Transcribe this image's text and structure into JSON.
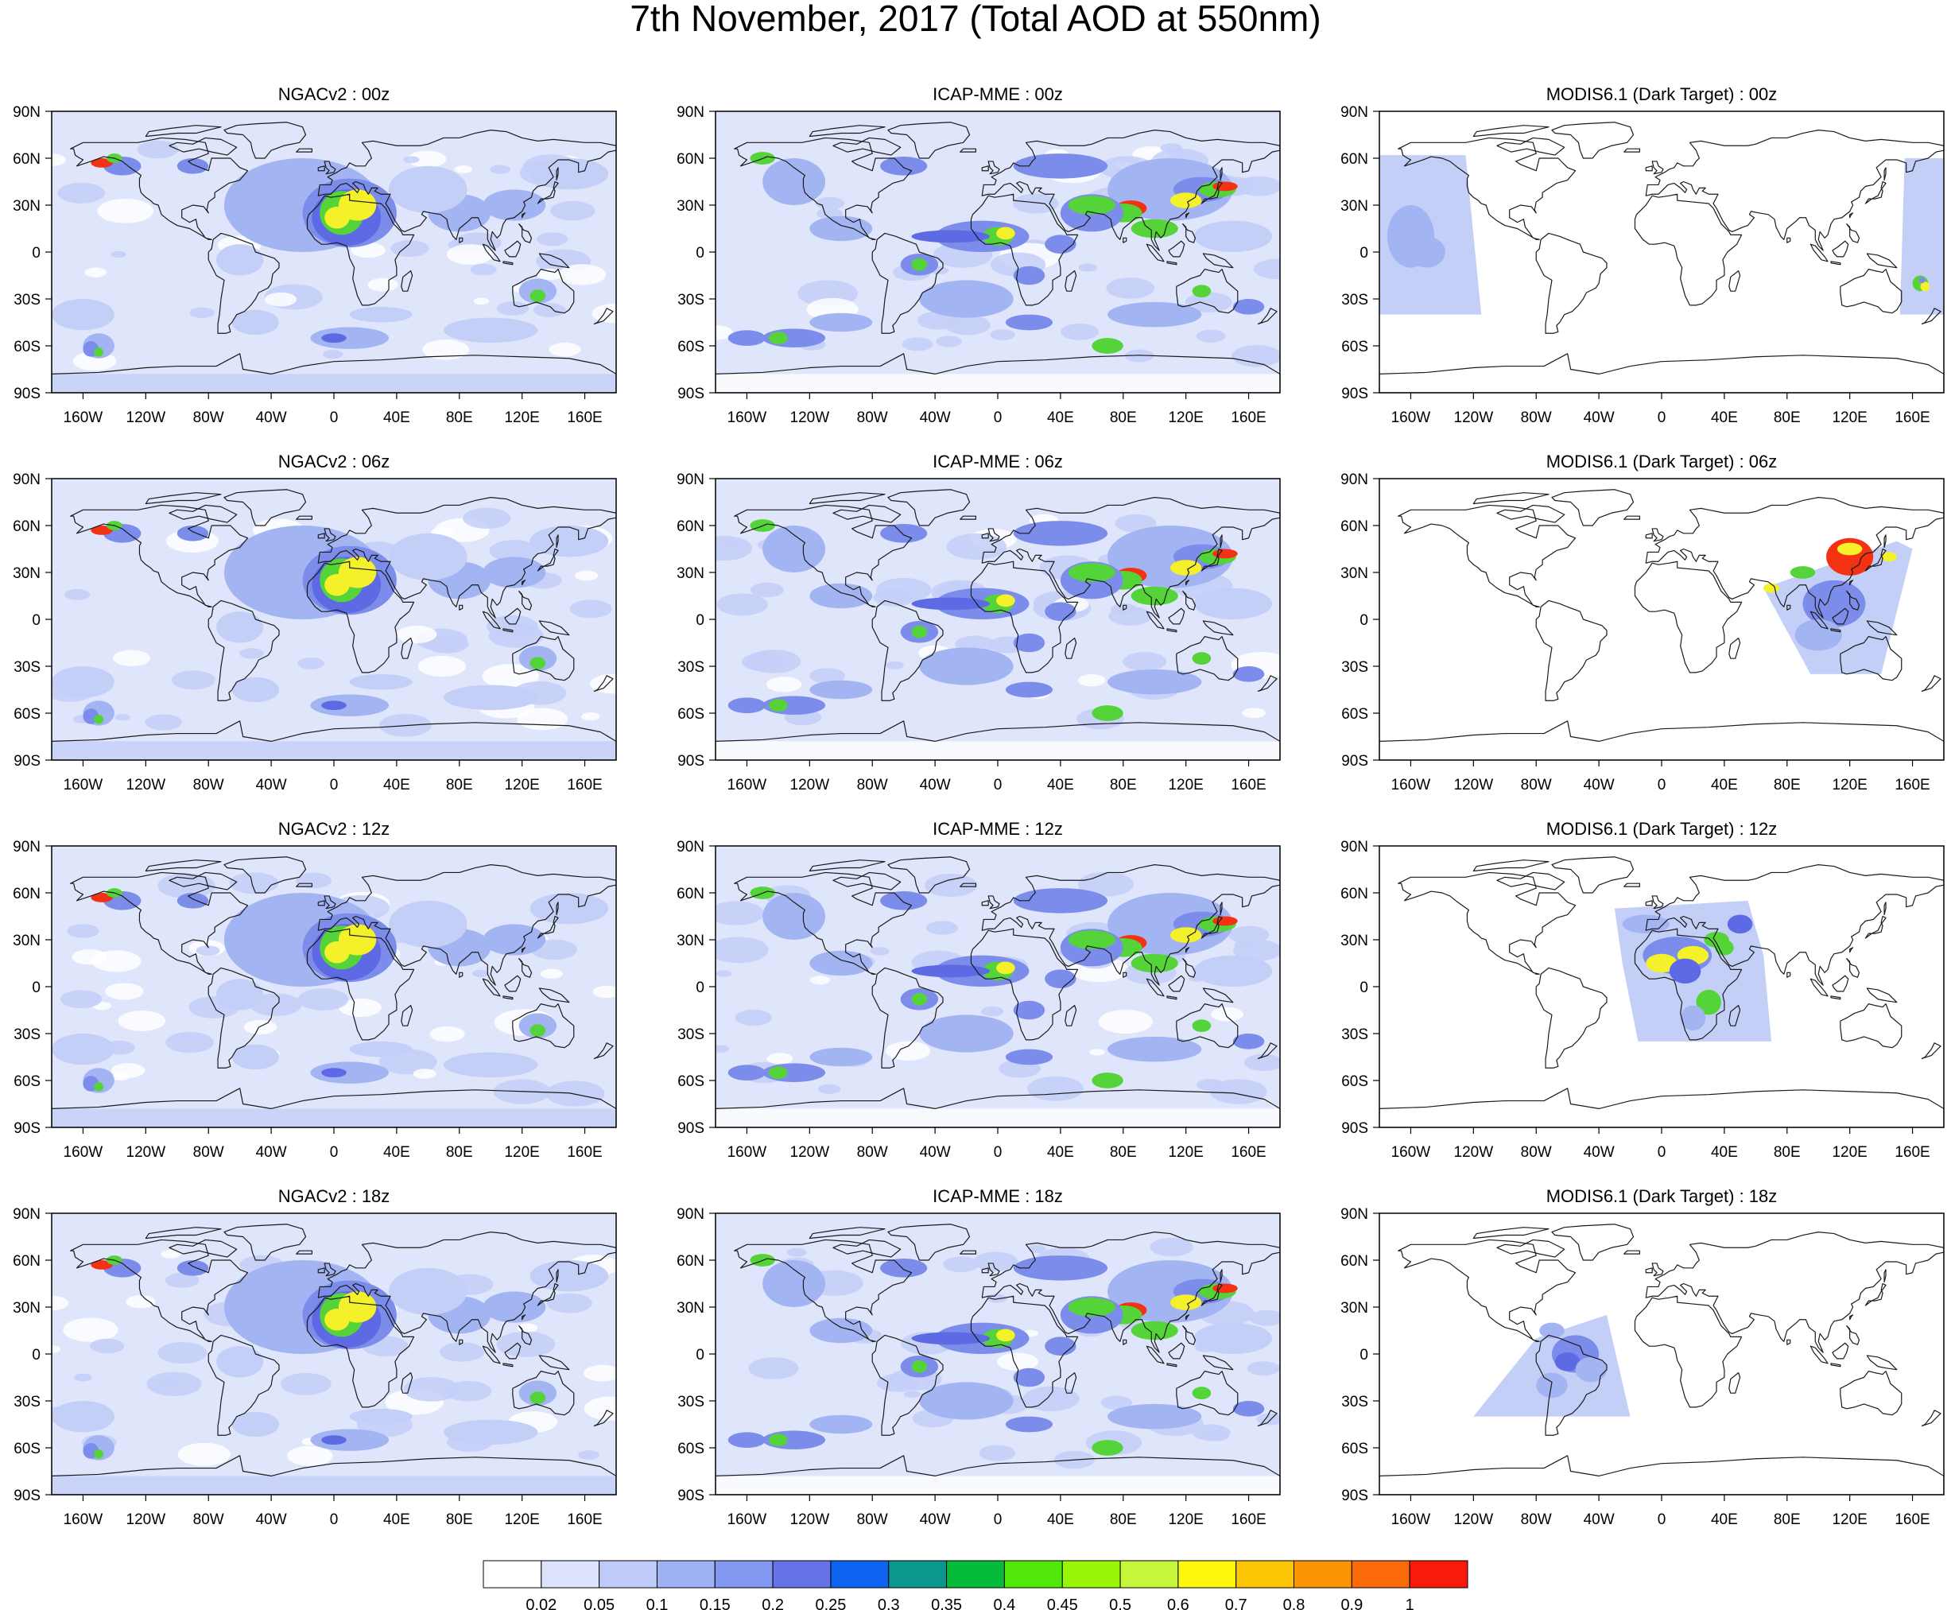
{
  "title": "7th November, 2017 (Total AOD at 550nm)",
  "panels": [
    {
      "title": "NGACv2 : 00z",
      "model": "NGACv2",
      "time": "00z"
    },
    {
      "title": "ICAP-MME : 00z",
      "model": "ICAP-MME",
      "time": "00z"
    },
    {
      "title": "MODIS6.1 (Dark Target) : 00z",
      "model": "MODIS6.1",
      "time": "00z"
    },
    {
      "title": "NGACv2 : 06z",
      "model": "NGACv2",
      "time": "06z"
    },
    {
      "title": "ICAP-MME : 06z",
      "model": "ICAP-MME",
      "time": "06z"
    },
    {
      "title": "MODIS6.1 (Dark Target) : 06z",
      "model": "MODIS6.1",
      "time": "06z"
    },
    {
      "title": "NGACv2 : 12z",
      "model": "NGACv2",
      "time": "12z"
    },
    {
      "title": "ICAP-MME : 12z",
      "model": "ICAP-MME",
      "time": "12z"
    },
    {
      "title": "MODIS6.1 (Dark Target) : 12z",
      "model": "MODIS6.1",
      "time": "12z"
    },
    {
      "title": "NGACv2 : 18z",
      "model": "NGACv2",
      "time": "18z"
    },
    {
      "title": "ICAP-MME : 18z",
      "model": "ICAP-MME",
      "time": "18z"
    },
    {
      "title": "MODIS6.1 (Dark Target) : 18z",
      "model": "MODIS6.1",
      "time": "18z"
    }
  ],
  "lat_ticks": [
    {
      "value": 90,
      "label": "90N"
    },
    {
      "value": 60,
      "label": "60N"
    },
    {
      "value": 30,
      "label": "30N"
    },
    {
      "value": 0,
      "label": "0"
    },
    {
      "value": -30,
      "label": "30S"
    },
    {
      "value": -60,
      "label": "60S"
    },
    {
      "value": -90,
      "label": "90S"
    }
  ],
  "lon_ticks": [
    {
      "value": -160,
      "label": "160W"
    },
    {
      "value": -120,
      "label": "120W"
    },
    {
      "value": -80,
      "label": "80W"
    },
    {
      "value": -40,
      "label": "40W"
    },
    {
      "value": 0,
      "label": "0"
    },
    {
      "value": 40,
      "label": "40E"
    },
    {
      "value": 80,
      "label": "80E"
    },
    {
      "value": 120,
      "label": "120E"
    },
    {
      "value": 160,
      "label": "160E"
    }
  ],
  "colorbar": {
    "levels": [
      "0.02",
      "0.05",
      "0.1",
      "0.15",
      "0.2",
      "0.25",
      "0.3",
      "0.35",
      "0.4",
      "0.45",
      "0.5",
      "0.6",
      "0.7",
      "0.8",
      "0.9",
      "1"
    ],
    "colors": [
      "#ffffff",
      "#dde3fb",
      "#bfcbf8",
      "#9fb2f6",
      "#8297ef",
      "#6672e8",
      "#0e62f0",
      "#0b968e",
      "#07bb3a",
      "#52e80a",
      "#98f507",
      "#c7f53c",
      "#fcf70d",
      "#fbc505",
      "#fb9504",
      "#fa6a0a",
      "#f81b0c"
    ]
  },
  "feature_colors": {
    "background": "#dfe5fb",
    "light": "#c4cff8",
    "medium": "#a3b4f3",
    "dark": "#7b8cea",
    "darker": "#5d6ae4",
    "green": "#55d43a",
    "yellow": "#f4f02a",
    "red": "#f33214",
    "coast": "#1a1a1a"
  }
}
